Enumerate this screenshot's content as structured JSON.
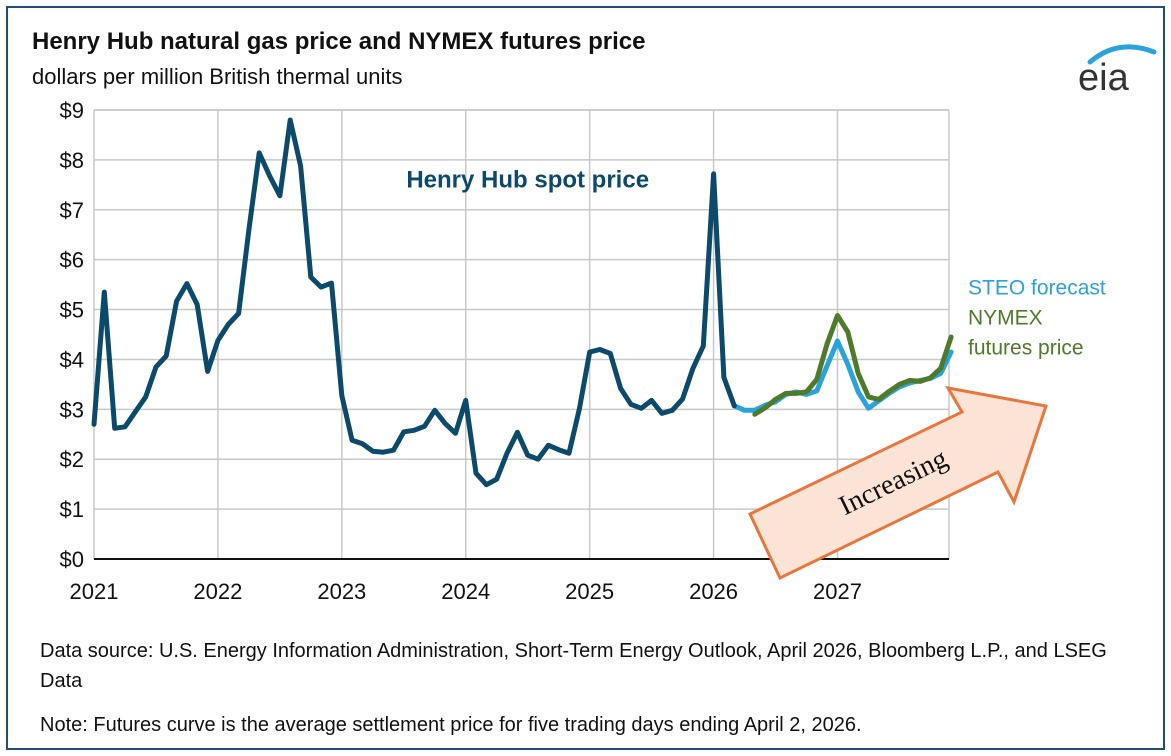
{
  "title": "Henry Hub natural gas price and NYMEX futures price",
  "subtitle": "dollars per million British thermal units",
  "logo_text": "eia",
  "source": "Data source: U.S. Energy Information Administration, Short-Term Energy Outlook, April 2026, Bloomberg L.P., and LSEG Data",
  "note": "Note: Futures curve is the average settlement price for five trading days ending April 2, 2026.",
  "colors": {
    "spot": "#0b4a6b",
    "steo": "#2aa3dc",
    "nymex": "#4e7a2a",
    "arrow_fill": "#fbe3d6",
    "arrow_stroke": "#e8763d",
    "grid": "#c8c8c8"
  },
  "chart_data": {
    "type": "line",
    "title": "Henry Hub natural gas price and NYMEX futures price",
    "subtitle": "dollars per million British thermal units",
    "xlabel": "",
    "ylabel": "",
    "x_unit": "year (monthly data)",
    "xlim": [
      2021,
      2027.9
    ],
    "ylim": [
      0,
      9
    ],
    "y_ticks": [
      0,
      1,
      2,
      3,
      4,
      5,
      6,
      7,
      8,
      9
    ],
    "y_tick_labels": [
      "$0",
      "$1",
      "$2",
      "$3",
      "$4",
      "$5",
      "$6",
      "$7",
      "$8",
      "$9"
    ],
    "x_ticks": [
      2021,
      2022,
      2023,
      2024,
      2025,
      2026,
      2027
    ],
    "x_tick_labels": [
      "2021",
      "2022",
      "2023",
      "2024",
      "2025",
      "2026",
      "2027"
    ],
    "grid": true,
    "annotations": [
      {
        "text": "Henry Hub spot price",
        "x": 2024.5,
        "y": 7.45,
        "series": "spot"
      },
      {
        "text": "STEO forecast",
        "x": 2028.05,
        "y": 5.3,
        "series": "steo"
      },
      {
        "text": "NYMEX",
        "x": 2028.05,
        "y": 4.7,
        "series": "nymex"
      },
      {
        "text": "futures price",
        "x": 2028.05,
        "y": 4.1,
        "series": "nymex"
      },
      {
        "text": "Increasing",
        "x": 2027.0,
        "y": 1.6,
        "series": "arrow"
      }
    ],
    "series": [
      {
        "name": "Henry Hub spot price",
        "key": "spot",
        "x": [
          2021.0,
          2021.083,
          2021.167,
          2021.25,
          2021.333,
          2021.417,
          2021.5,
          2021.583,
          2021.667,
          2021.75,
          2021.833,
          2021.917,
          2022.0,
          2022.083,
          2022.167,
          2022.25,
          2022.333,
          2022.417,
          2022.5,
          2022.583,
          2022.667,
          2022.75,
          2022.833,
          2022.917,
          2023.0,
          2023.083,
          2023.167,
          2023.25,
          2023.333,
          2023.417,
          2023.5,
          2023.583,
          2023.667,
          2023.75,
          2023.833,
          2023.917,
          2024.0,
          2024.083,
          2024.167,
          2024.25,
          2024.333,
          2024.417,
          2024.5,
          2024.583,
          2024.667,
          2024.75,
          2024.833,
          2024.917,
          2025.0,
          2025.083,
          2025.167,
          2025.25,
          2025.333,
          2025.417,
          2025.5,
          2025.583,
          2025.667,
          2025.75,
          2025.833,
          2025.917,
          2026.0,
          2026.083,
          2026.167
        ],
        "values": [
          2.7,
          5.35,
          2.62,
          2.65,
          2.95,
          3.25,
          3.85,
          4.07,
          5.17,
          5.52,
          5.1,
          3.76,
          4.38,
          4.7,
          4.92,
          6.6,
          8.14,
          7.68,
          7.28,
          8.8,
          7.88,
          5.65,
          5.45,
          5.53,
          3.28,
          2.38,
          2.31,
          2.16,
          2.14,
          2.18,
          2.55,
          2.58,
          2.66,
          2.98,
          2.72,
          2.52,
          3.18,
          1.72,
          1.49,
          1.6,
          2.12,
          2.54,
          2.08,
          2.0,
          2.28,
          2.19,
          2.12,
          3.01,
          4.15,
          4.2,
          4.12,
          3.42,
          3.1,
          3.02,
          3.18,
          2.92,
          2.98,
          3.21,
          3.82,
          4.27,
          7.72,
          3.64,
          3.07
        ]
      },
      {
        "name": "STEO forecast",
        "key": "steo",
        "x": [
          2026.167,
          2026.25,
          2026.333,
          2026.417,
          2026.5,
          2026.583,
          2026.667,
          2026.75,
          2026.833,
          2026.917,
          2027.0,
          2027.083,
          2027.167,
          2027.25,
          2027.333,
          2027.417,
          2027.5,
          2027.583,
          2027.667,
          2027.75,
          2027.833,
          2027.917
        ],
        "values": [
          3.07,
          2.98,
          2.98,
          3.08,
          3.15,
          3.3,
          3.35,
          3.3,
          3.37,
          3.88,
          4.37,
          3.9,
          3.35,
          3.02,
          3.17,
          3.32,
          3.45,
          3.53,
          3.58,
          3.62,
          3.72,
          4.15
        ]
      },
      {
        "name": "NYMEX futures price",
        "key": "nymex",
        "x": [
          2026.333,
          2026.417,
          2026.5,
          2026.583,
          2026.667,
          2026.75,
          2026.833,
          2026.917,
          2027.0,
          2027.083,
          2027.167,
          2027.25,
          2027.333,
          2027.417,
          2027.5,
          2027.583,
          2027.667,
          2027.75,
          2027.833,
          2027.917
        ],
        "values": [
          2.9,
          3.03,
          3.2,
          3.32,
          3.32,
          3.35,
          3.6,
          4.32,
          4.88,
          4.55,
          3.72,
          3.25,
          3.2,
          3.36,
          3.5,
          3.58,
          3.56,
          3.63,
          3.82,
          4.45
        ]
      }
    ]
  }
}
